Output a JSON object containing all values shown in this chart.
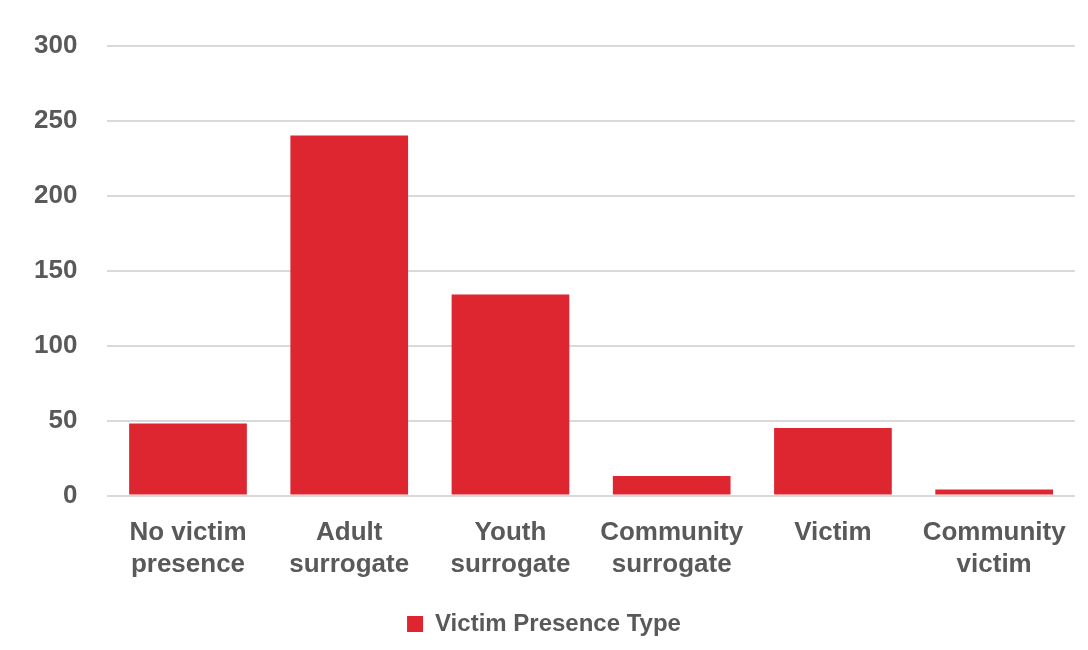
{
  "chart_data": {
    "type": "bar",
    "categories": [
      "No victim presence",
      "Adult surrogate",
      "Youth surrogate",
      "Community surrogate",
      "Victim",
      "Community victim"
    ],
    "series": [
      {
        "name": "Victim Presence Type",
        "color": "#de2630",
        "values": [
          48,
          240,
          134,
          13,
          45,
          4
        ]
      }
    ],
    "ylim": [
      0,
      300
    ],
    "yticks": [
      0,
      50,
      100,
      150,
      200,
      250,
      300
    ],
    "grid": "y",
    "legend": "bottom"
  }
}
